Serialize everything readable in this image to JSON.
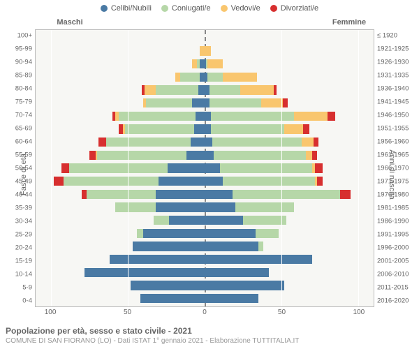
{
  "legend": [
    {
      "label": "Celibi/Nubili",
      "color": "#4a7aa4"
    },
    {
      "label": "Coniugati/e",
      "color": "#b6d7a8"
    },
    {
      "label": "Vedovi/e",
      "color": "#f9c66e"
    },
    {
      "label": "Divorziati/e",
      "color": "#d72f2f"
    }
  ],
  "headers": {
    "male": "Maschi",
    "female": "Femmine"
  },
  "axis": {
    "left_title": "Fasce di età",
    "right_title": "Anni di nascita",
    "x_ticks": [
      100,
      50,
      0,
      50,
      100
    ],
    "x_max": 110
  },
  "footer": {
    "title": "Popolazione per età, sesso e stato civile - 2021",
    "subtitle": "COMUNE DI SAN FIORANO (LO) - Dati ISTAT 1° gennaio 2021 - Elaborazione TUTTITALIA.IT"
  },
  "colors": {
    "single": "#4a7aa4",
    "married": "#b6d7a8",
    "widowed": "#f9c66e",
    "divorced": "#d72f2f",
    "background": "#f7f7f4",
    "grid": "#ffffff"
  },
  "age_groups": [
    {
      "age": "100+",
      "birth": "≤ 1920",
      "m": {
        "single": 0,
        "married": 0,
        "widowed": 0,
        "divorced": 0
      },
      "f": {
        "single": 0,
        "married": 0,
        "widowed": 0,
        "divorced": 0
      }
    },
    {
      "age": "95-99",
      "birth": "1921-1925",
      "m": {
        "single": 0,
        "married": 0,
        "widowed": 3,
        "divorced": 0
      },
      "f": {
        "single": 0,
        "married": 0,
        "widowed": 4,
        "divorced": 0
      }
    },
    {
      "age": "90-94",
      "birth": "1926-1930",
      "m": {
        "single": 3,
        "married": 2,
        "widowed": 3,
        "divorced": 0
      },
      "f": {
        "single": 1,
        "married": 1,
        "widowed": 10,
        "divorced": 0
      }
    },
    {
      "age": "85-89",
      "birth": "1931-1935",
      "m": {
        "single": 3,
        "married": 13,
        "widowed": 3,
        "divorced": 0
      },
      "f": {
        "single": 2,
        "married": 10,
        "widowed": 22,
        "divorced": 0
      }
    },
    {
      "age": "80-84",
      "birth": "1936-1940",
      "m": {
        "single": 4,
        "married": 28,
        "widowed": 7,
        "divorced": 2
      },
      "f": {
        "single": 3,
        "married": 20,
        "widowed": 22,
        "divorced": 2
      }
    },
    {
      "age": "75-79",
      "birth": "1941-1945",
      "m": {
        "single": 8,
        "married": 30,
        "widowed": 2,
        "divorced": 0
      },
      "f": {
        "single": 3,
        "married": 34,
        "widowed": 14,
        "divorced": 3
      }
    },
    {
      "age": "70-74",
      "birth": "1946-1950",
      "m": {
        "single": 6,
        "married": 50,
        "widowed": 2,
        "divorced": 2
      },
      "f": {
        "single": 4,
        "married": 54,
        "widowed": 22,
        "divorced": 5
      }
    },
    {
      "age": "65-69",
      "birth": "1951-1955",
      "m": {
        "single": 7,
        "married": 45,
        "widowed": 1,
        "divorced": 3
      },
      "f": {
        "single": 4,
        "married": 48,
        "widowed": 12,
        "divorced": 4
      }
    },
    {
      "age": "60-64",
      "birth": "1956-1960",
      "m": {
        "single": 9,
        "married": 55,
        "widowed": 0,
        "divorced": 5
      },
      "f": {
        "single": 5,
        "married": 58,
        "widowed": 8,
        "divorced": 3
      }
    },
    {
      "age": "55-59",
      "birth": "1961-1965",
      "m": {
        "single": 12,
        "married": 58,
        "widowed": 1,
        "divorced": 4
      },
      "f": {
        "single": 6,
        "married": 60,
        "widowed": 4,
        "divorced": 3
      }
    },
    {
      "age": "50-54",
      "birth": "1966-1970",
      "m": {
        "single": 24,
        "married": 64,
        "widowed": 0,
        "divorced": 5
      },
      "f": {
        "single": 10,
        "married": 60,
        "widowed": 2,
        "divorced": 5
      }
    },
    {
      "age": "45-49",
      "birth": "1971-1975",
      "m": {
        "single": 30,
        "married": 62,
        "widowed": 0,
        "divorced": 6
      },
      "f": {
        "single": 12,
        "married": 60,
        "widowed": 1,
        "divorced": 4
      }
    },
    {
      "age": "40-44",
      "birth": "1976-1980",
      "m": {
        "single": 32,
        "married": 45,
        "widowed": 0,
        "divorced": 3
      },
      "f": {
        "single": 18,
        "married": 70,
        "widowed": 0,
        "divorced": 7
      }
    },
    {
      "age": "35-39",
      "birth": "1981-1985",
      "m": {
        "single": 32,
        "married": 26,
        "widowed": 0,
        "divorced": 0
      },
      "f": {
        "single": 20,
        "married": 38,
        "widowed": 0,
        "divorced": 0
      }
    },
    {
      "age": "30-34",
      "birth": "1986-1990",
      "m": {
        "single": 23,
        "married": 10,
        "widowed": 0,
        "divorced": 0
      },
      "f": {
        "single": 25,
        "married": 28,
        "widowed": 0,
        "divorced": 0
      }
    },
    {
      "age": "25-29",
      "birth": "1991-1995",
      "m": {
        "single": 40,
        "married": 4,
        "widowed": 0,
        "divorced": 0
      },
      "f": {
        "single": 33,
        "married": 15,
        "widowed": 0,
        "divorced": 0
      }
    },
    {
      "age": "20-24",
      "birth": "1996-2000",
      "m": {
        "single": 47,
        "married": 0,
        "widowed": 0,
        "divorced": 0
      },
      "f": {
        "single": 35,
        "married": 3,
        "widowed": 0,
        "divorced": 0
      }
    },
    {
      "age": "15-19",
      "birth": "2001-2005",
      "m": {
        "single": 62,
        "married": 0,
        "widowed": 0,
        "divorced": 0
      },
      "f": {
        "single": 70,
        "married": 0,
        "widowed": 0,
        "divorced": 0
      }
    },
    {
      "age": "10-14",
      "birth": "2006-2010",
      "m": {
        "single": 78,
        "married": 0,
        "widowed": 0,
        "divorced": 0
      },
      "f": {
        "single": 42,
        "married": 0,
        "widowed": 0,
        "divorced": 0
      }
    },
    {
      "age": "5-9",
      "birth": "2011-2015",
      "m": {
        "single": 48,
        "married": 0,
        "widowed": 0,
        "divorced": 0
      },
      "f": {
        "single": 52,
        "married": 0,
        "widowed": 0,
        "divorced": 0
      }
    },
    {
      "age": "0-4",
      "birth": "2016-2020",
      "m": {
        "single": 42,
        "married": 0,
        "widowed": 0,
        "divorced": 0
      },
      "f": {
        "single": 35,
        "married": 0,
        "widowed": 0,
        "divorced": 0
      }
    }
  ]
}
